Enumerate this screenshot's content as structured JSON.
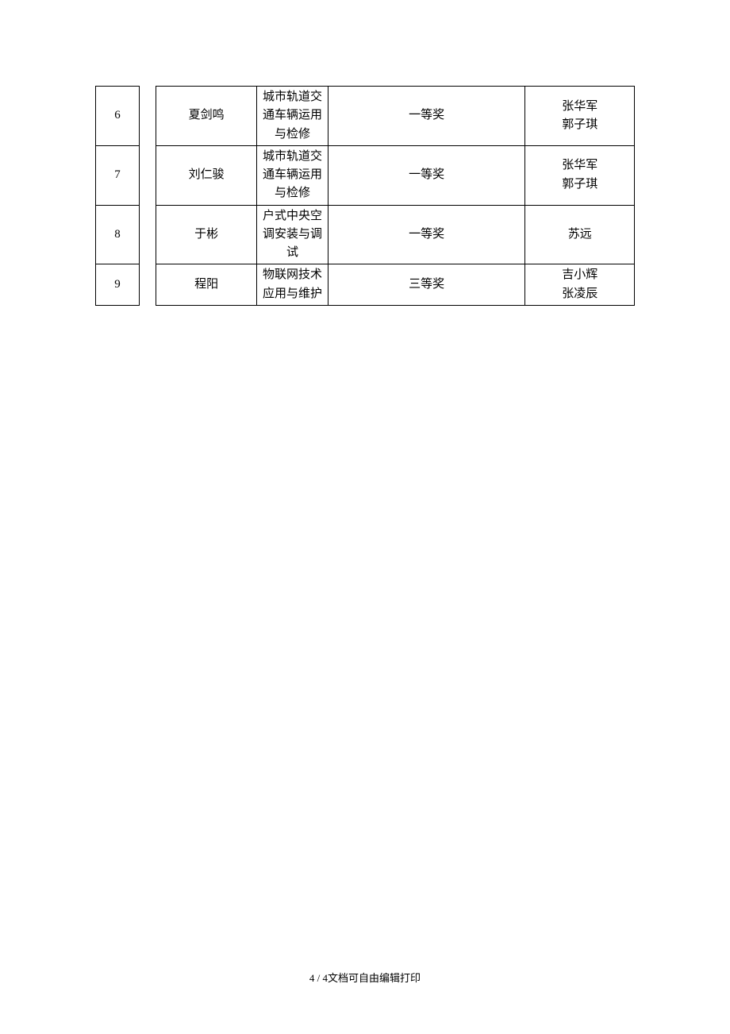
{
  "table": {
    "rows": [
      {
        "num": "6",
        "name": "夏剑鸣",
        "subject": "城市轨道交通车辆运用与检修",
        "award": "一等奖",
        "teacher1": "张华军",
        "teacher2": "郭子琪"
      },
      {
        "num": "7",
        "name": "刘仁骏",
        "subject": "城市轨道交通车辆运用与检修",
        "award": "一等奖",
        "teacher1": "张华军",
        "teacher2": "郭子琪"
      },
      {
        "num": "8",
        "name": "于彬",
        "subject": "户式中央空调安装与调试",
        "award": "一等奖",
        "teacher1": "苏远",
        "teacher2": ""
      },
      {
        "num": "9",
        "name": "程阳",
        "subject": "物联网技术应用与维护",
        "award": "三等奖",
        "teacher1": "吉小辉",
        "teacher2": "张凌辰"
      }
    ]
  },
  "footer": {
    "page_current": "4",
    "page_total": "4",
    "page_sep": " / ",
    "note": "文档可自由编辑打印"
  }
}
